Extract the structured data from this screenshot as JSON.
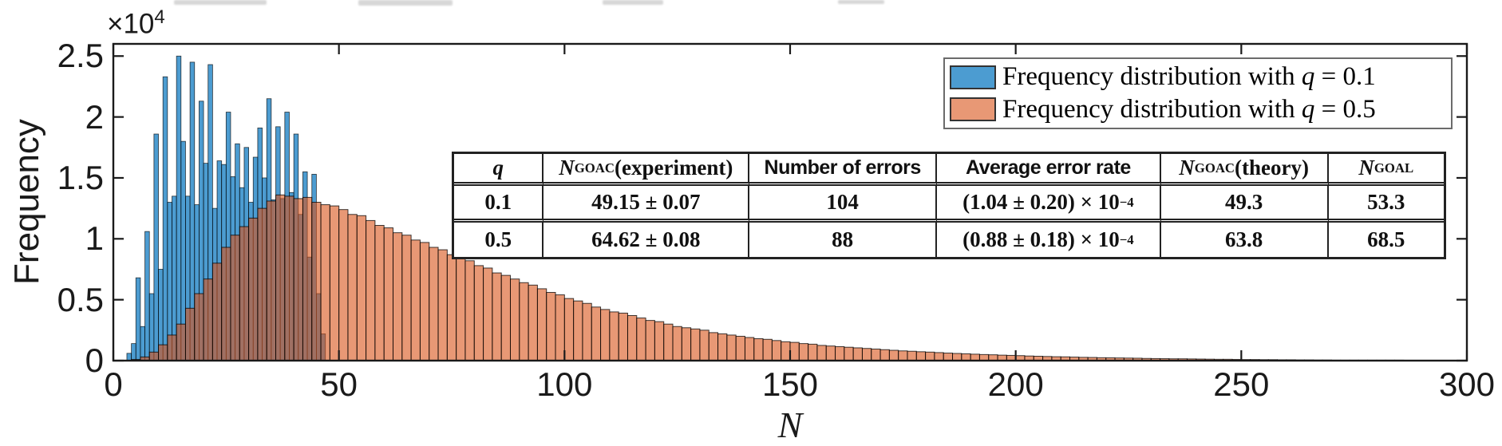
{
  "figure": {
    "ylabel": "Frequency",
    "xlabel": "N",
    "offset_label_segments": [
      [
        "×10"
      ],
      [
        "4",
        "sup"
      ]
    ],
    "axis_color": "#1a1a1a"
  },
  "legend": {
    "entries": [
      {
        "swatch": "blue-swatch",
        "swatch_color": "#4C9CD1",
        "segments": [
          [
            "Frequency distribution with "
          ],
          [
            "q",
            "i"
          ],
          [
            " = 0.1"
          ]
        ]
      },
      {
        "swatch": "orange-swatch",
        "swatch_color": "#E89875",
        "segments": [
          [
            "Frequency distribution with "
          ],
          [
            "q",
            "i"
          ],
          [
            " = 0.5"
          ]
        ]
      }
    ]
  },
  "table": {
    "headers": [
      {
        "segments": [
          [
            "q",
            "i"
          ]
        ],
        "sans": false
      },
      {
        "segments": [
          [
            "N",
            "i"
          ],
          [
            "GOAC",
            "sub"
          ],
          [
            " (experiment)"
          ]
        ],
        "sans": false
      },
      {
        "segments": [
          [
            "Number of errors"
          ]
        ],
        "sans": true
      },
      {
        "segments": [
          [
            "Average error rate"
          ]
        ],
        "sans": true
      },
      {
        "segments": [
          [
            "N",
            "i"
          ],
          [
            "GOAC",
            "sub"
          ],
          [
            " (theory)"
          ]
        ],
        "sans": false
      },
      {
        "segments": [
          [
            "N",
            "i"
          ],
          [
            "GOAL",
            "sub"
          ]
        ],
        "sans": false
      }
    ],
    "rows": [
      [
        [
          [
            "0.1"
          ]
        ],
        [
          [
            "49.15 ± 0.07"
          ]
        ],
        [
          [
            "104"
          ]
        ],
        [
          [
            "(1.04 ± 0.20) × 10"
          ],
          [
            "−4",
            "sup"
          ]
        ],
        [
          [
            "49.3"
          ]
        ],
        [
          [
            "53.3"
          ]
        ]
      ],
      [
        [
          [
            "0.5"
          ]
        ],
        [
          [
            "64.62 ± 0.08"
          ]
        ],
        [
          [
            "88"
          ]
        ],
        [
          [
            "(0.88 ± 0.18) × 10"
          ],
          [
            "−4",
            "sup"
          ]
        ],
        [
          [
            "63.8"
          ]
        ],
        [
          [
            "68.5"
          ]
        ]
      ]
    ]
  },
  "chart_data": {
    "type": "bar",
    "subtype": "overlaid-histograms",
    "title": "",
    "xlabel": "N",
    "ylabel": "Frequency",
    "y_axis_offset_label": "×10⁴",
    "y_unit": "1e4",
    "xlim": [
      0,
      300
    ],
    "ylim": [
      0,
      2.6
    ],
    "x_ticks": [
      0,
      50,
      100,
      150,
      200,
      250,
      300
    ],
    "y_ticks": [
      0,
      0.5,
      1,
      1.5,
      2,
      2.5
    ],
    "grid": false,
    "legend_position": "top-right",
    "edge_color": "#000000",
    "series": [
      {
        "name": "Frequency distribution with q = 0.1",
        "color": "#0072BD",
        "fill_alpha": 0.7,
        "bin_start": 3,
        "bin_width": 1,
        "values_1e4": [
          0.06,
          0.14,
          0.68,
          0.28,
          1.06,
          0.55,
          1.86,
          0.75,
          2.33,
          1.3,
          1.35,
          2.5,
          1.8,
          1.35,
          2.45,
          1.28,
          2.13,
          1.62,
          2.43,
          1.25,
          1.64,
          1.61,
          2.04,
          1.51,
          1.78,
          1.42,
          1.75,
          1.3,
          1.67,
          1.91,
          1.5,
          2.15,
          1.32,
          1.92,
          1.33,
          2.04,
          1.38,
          1.86,
          1.2,
          1.55,
          0.85,
          1.53,
          0.55,
          0.22
        ]
      },
      {
        "name": "Frequency distribution with q = 0.5",
        "color": "#D95319",
        "fill_alpha": 0.6,
        "bin_start": 4,
        "bin_width": 2,
        "values_1e4": [
          0.01,
          0.03,
          0.07,
          0.13,
          0.21,
          0.3,
          0.43,
          0.55,
          0.67,
          0.8,
          0.93,
          1.03,
          1.1,
          1.17,
          1.25,
          1.31,
          1.36,
          1.35,
          1.33,
          1.34,
          1.3,
          1.28,
          1.27,
          1.24,
          1.2,
          1.19,
          1.15,
          1.11,
          1.09,
          1.05,
          1.03,
          0.99,
          0.97,
          0.93,
          0.91,
          0.87,
          0.84,
          0.82,
          0.78,
          0.76,
          0.72,
          0.7,
          0.67,
          0.64,
          0.62,
          0.59,
          0.56,
          0.54,
          0.51,
          0.49,
          0.47,
          0.44,
          0.42,
          0.4,
          0.39,
          0.37,
          0.35,
          0.33,
          0.32,
          0.3,
          0.28,
          0.27,
          0.26,
          0.25,
          0.23,
          0.22,
          0.21,
          0.2,
          0.19,
          0.18,
          0.175,
          0.165,
          0.155,
          0.15,
          0.14,
          0.135,
          0.125,
          0.12,
          0.115,
          0.11,
          0.105,
          0.1,
          0.095,
          0.09,
          0.085,
          0.08,
          0.077,
          0.073,
          0.07,
          0.066,
          0.062,
          0.059,
          0.056,
          0.053,
          0.05,
          0.048,
          0.045,
          0.043,
          0.041,
          0.038,
          0.036,
          0.034,
          0.032,
          0.031,
          0.029,
          0.027,
          0.026,
          0.024,
          0.023,
          0.022,
          0.021,
          0.02,
          0.018,
          0.017,
          0.016,
          0.015,
          0.015,
          0.014,
          0.013,
          0.012,
          0.011,
          0.011,
          0.01,
          0.009,
          0.009,
          0.008,
          0.008,
          0.007,
          0.007,
          0.006,
          0.006,
          0.005,
          0.005,
          0.004,
          0.004,
          0.004,
          0.003,
          0.003,
          0.003,
          0.002,
          0.002
        ]
      }
    ]
  }
}
